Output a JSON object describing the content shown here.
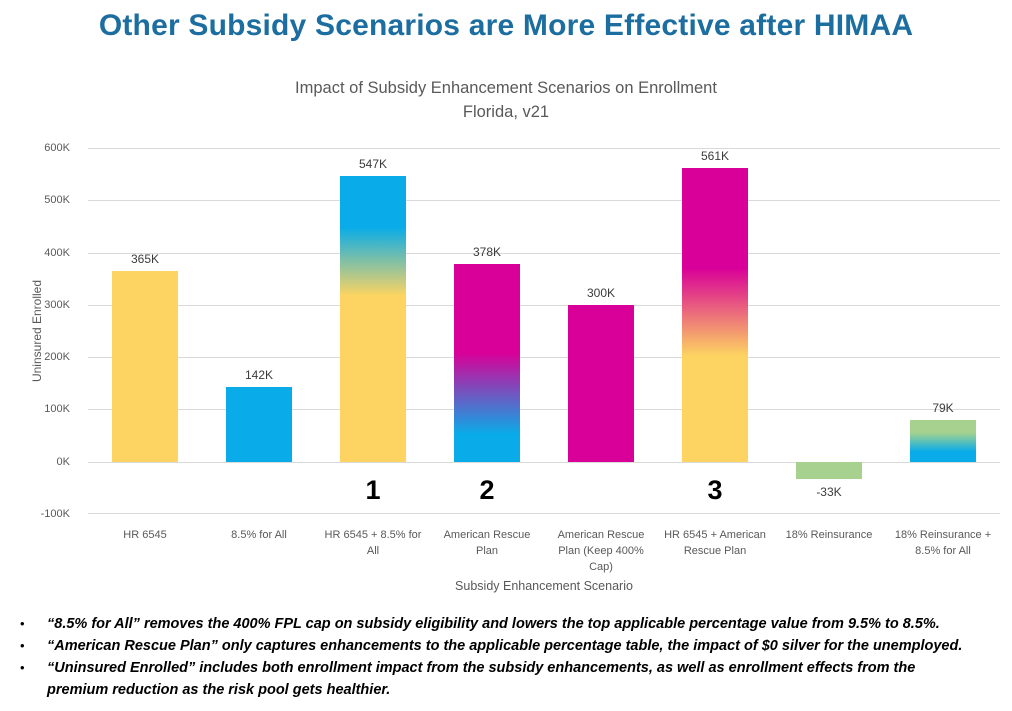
{
  "page_title": "Other Subsidy Scenarios are More Effective after HIMAA",
  "chart_data": {
    "type": "bar",
    "title": "Impact of Subsidy Enhancement Scenarios on Enrollment",
    "subtitle": "Florida, v21",
    "xlabel": "Subsidy Enhancement Scenario",
    "ylabel": "Uninsured Enrolled",
    "unit": "thousands of people",
    "ylim_thousands": [
      -100,
      600
    ],
    "grid": "horizontal",
    "legend": "none",
    "ytick_values_thousands": [
      600,
      500,
      400,
      300,
      200,
      100,
      0,
      -100
    ],
    "ytick_labels": [
      "600K",
      "500K",
      "400K",
      "300K",
      "200K",
      "100K",
      "0K",
      "-100K"
    ],
    "categories": [
      "HR 6545",
      "8.5% for All",
      "HR 6545 + 8.5% for All",
      "American Rescue Plan",
      "American Rescue Plan (Keep 400% Cap)",
      "HR 6545 + American Rescue Plan",
      "18% Reinsurance",
      "18% Reinsurance + 8.5% for All"
    ],
    "values_thousands": [
      365,
      142,
      547,
      378,
      300,
      561,
      -33,
      79
    ],
    "bars": [
      {
        "category": "HR 6545",
        "value_thousands": 365,
        "label": "365K",
        "annotation": "",
        "fill": [
          [
            "#FDD461",
            0
          ],
          [
            "#FDD461",
            100
          ]
        ]
      },
      {
        "category": "8.5% for All",
        "value_thousands": 142,
        "label": "142K",
        "annotation": "",
        "fill": [
          [
            "#09ACE8",
            0
          ],
          [
            "#09ACE8",
            100
          ]
        ]
      },
      {
        "category": "HR 6545 + 8.5% for All",
        "value_thousands": 547,
        "label": "547K",
        "annotation": "1",
        "fill": [
          [
            "#09ACE8",
            0
          ],
          [
            "#09ACE8",
            18
          ],
          [
            "#FDD461",
            42
          ],
          [
            "#FDD461",
            100
          ]
        ]
      },
      {
        "category": "American Rescue Plan",
        "value_thousands": 378,
        "label": "378K",
        "annotation": "2",
        "fill": [
          [
            "#D80098",
            0
          ],
          [
            "#D80098",
            45
          ],
          [
            "#09ACE8",
            86
          ],
          [
            "#09ACE8",
            100
          ]
        ]
      },
      {
        "category": "American Rescue Plan (Keep 400% Cap)",
        "value_thousands": 300,
        "label": "300K",
        "annotation": "",
        "fill": [
          [
            "#D80098",
            0
          ],
          [
            "#D80098",
            100
          ]
        ]
      },
      {
        "category": "HR 6545 + American Rescue Plan",
        "value_thousands": 561,
        "label": "561K",
        "annotation": "3",
        "fill": [
          [
            "#D80098",
            0
          ],
          [
            "#D80098",
            34
          ],
          [
            "#FDD461",
            64
          ],
          [
            "#FDD461",
            100
          ]
        ]
      },
      {
        "category": "18% Reinsurance",
        "value_thousands": -33,
        "label": "-33K",
        "annotation": "",
        "fill": [
          [
            "#A6D18E",
            0
          ],
          [
            "#A6D18E",
            100
          ]
        ]
      },
      {
        "category": "18% Reinsurance + 8.5% for All",
        "value_thousands": 79,
        "label": "79K",
        "annotation": "",
        "fill": [
          [
            "#A6D18E",
            0
          ],
          [
            "#A6D18E",
            30
          ],
          [
            "#09ACE8",
            75
          ],
          [
            "#09ACE8",
            100
          ]
        ]
      }
    ],
    "colors": {
      "hr6545_yellow": "#FDD461",
      "cap85_cyan": "#09ACE8",
      "arp_magenta": "#D80098",
      "reinsurance_green": "#A6D18E",
      "title_blue": "#1C6DA0",
      "axis_text_gray": "#595959",
      "gridline_gray": "#D9D9D9",
      "value_label_gray": "#3b3b3b"
    }
  },
  "footnotes": [
    "“8.5% for All” removes the 400% FPL cap on subsidy eligibility and lowers the top applicable percentage value from 9.5% to 8.5%.",
    "“American Rescue Plan” only captures enhancements to the applicable percentage table, the impact of $0 silver for the unemployed.",
    "“Uninsured Enrolled” includes both enrollment impact from the subsidy enhancements, as well as enrollment effects from the premium reduction as the risk pool gets healthier."
  ],
  "bullet_glyph": "•"
}
